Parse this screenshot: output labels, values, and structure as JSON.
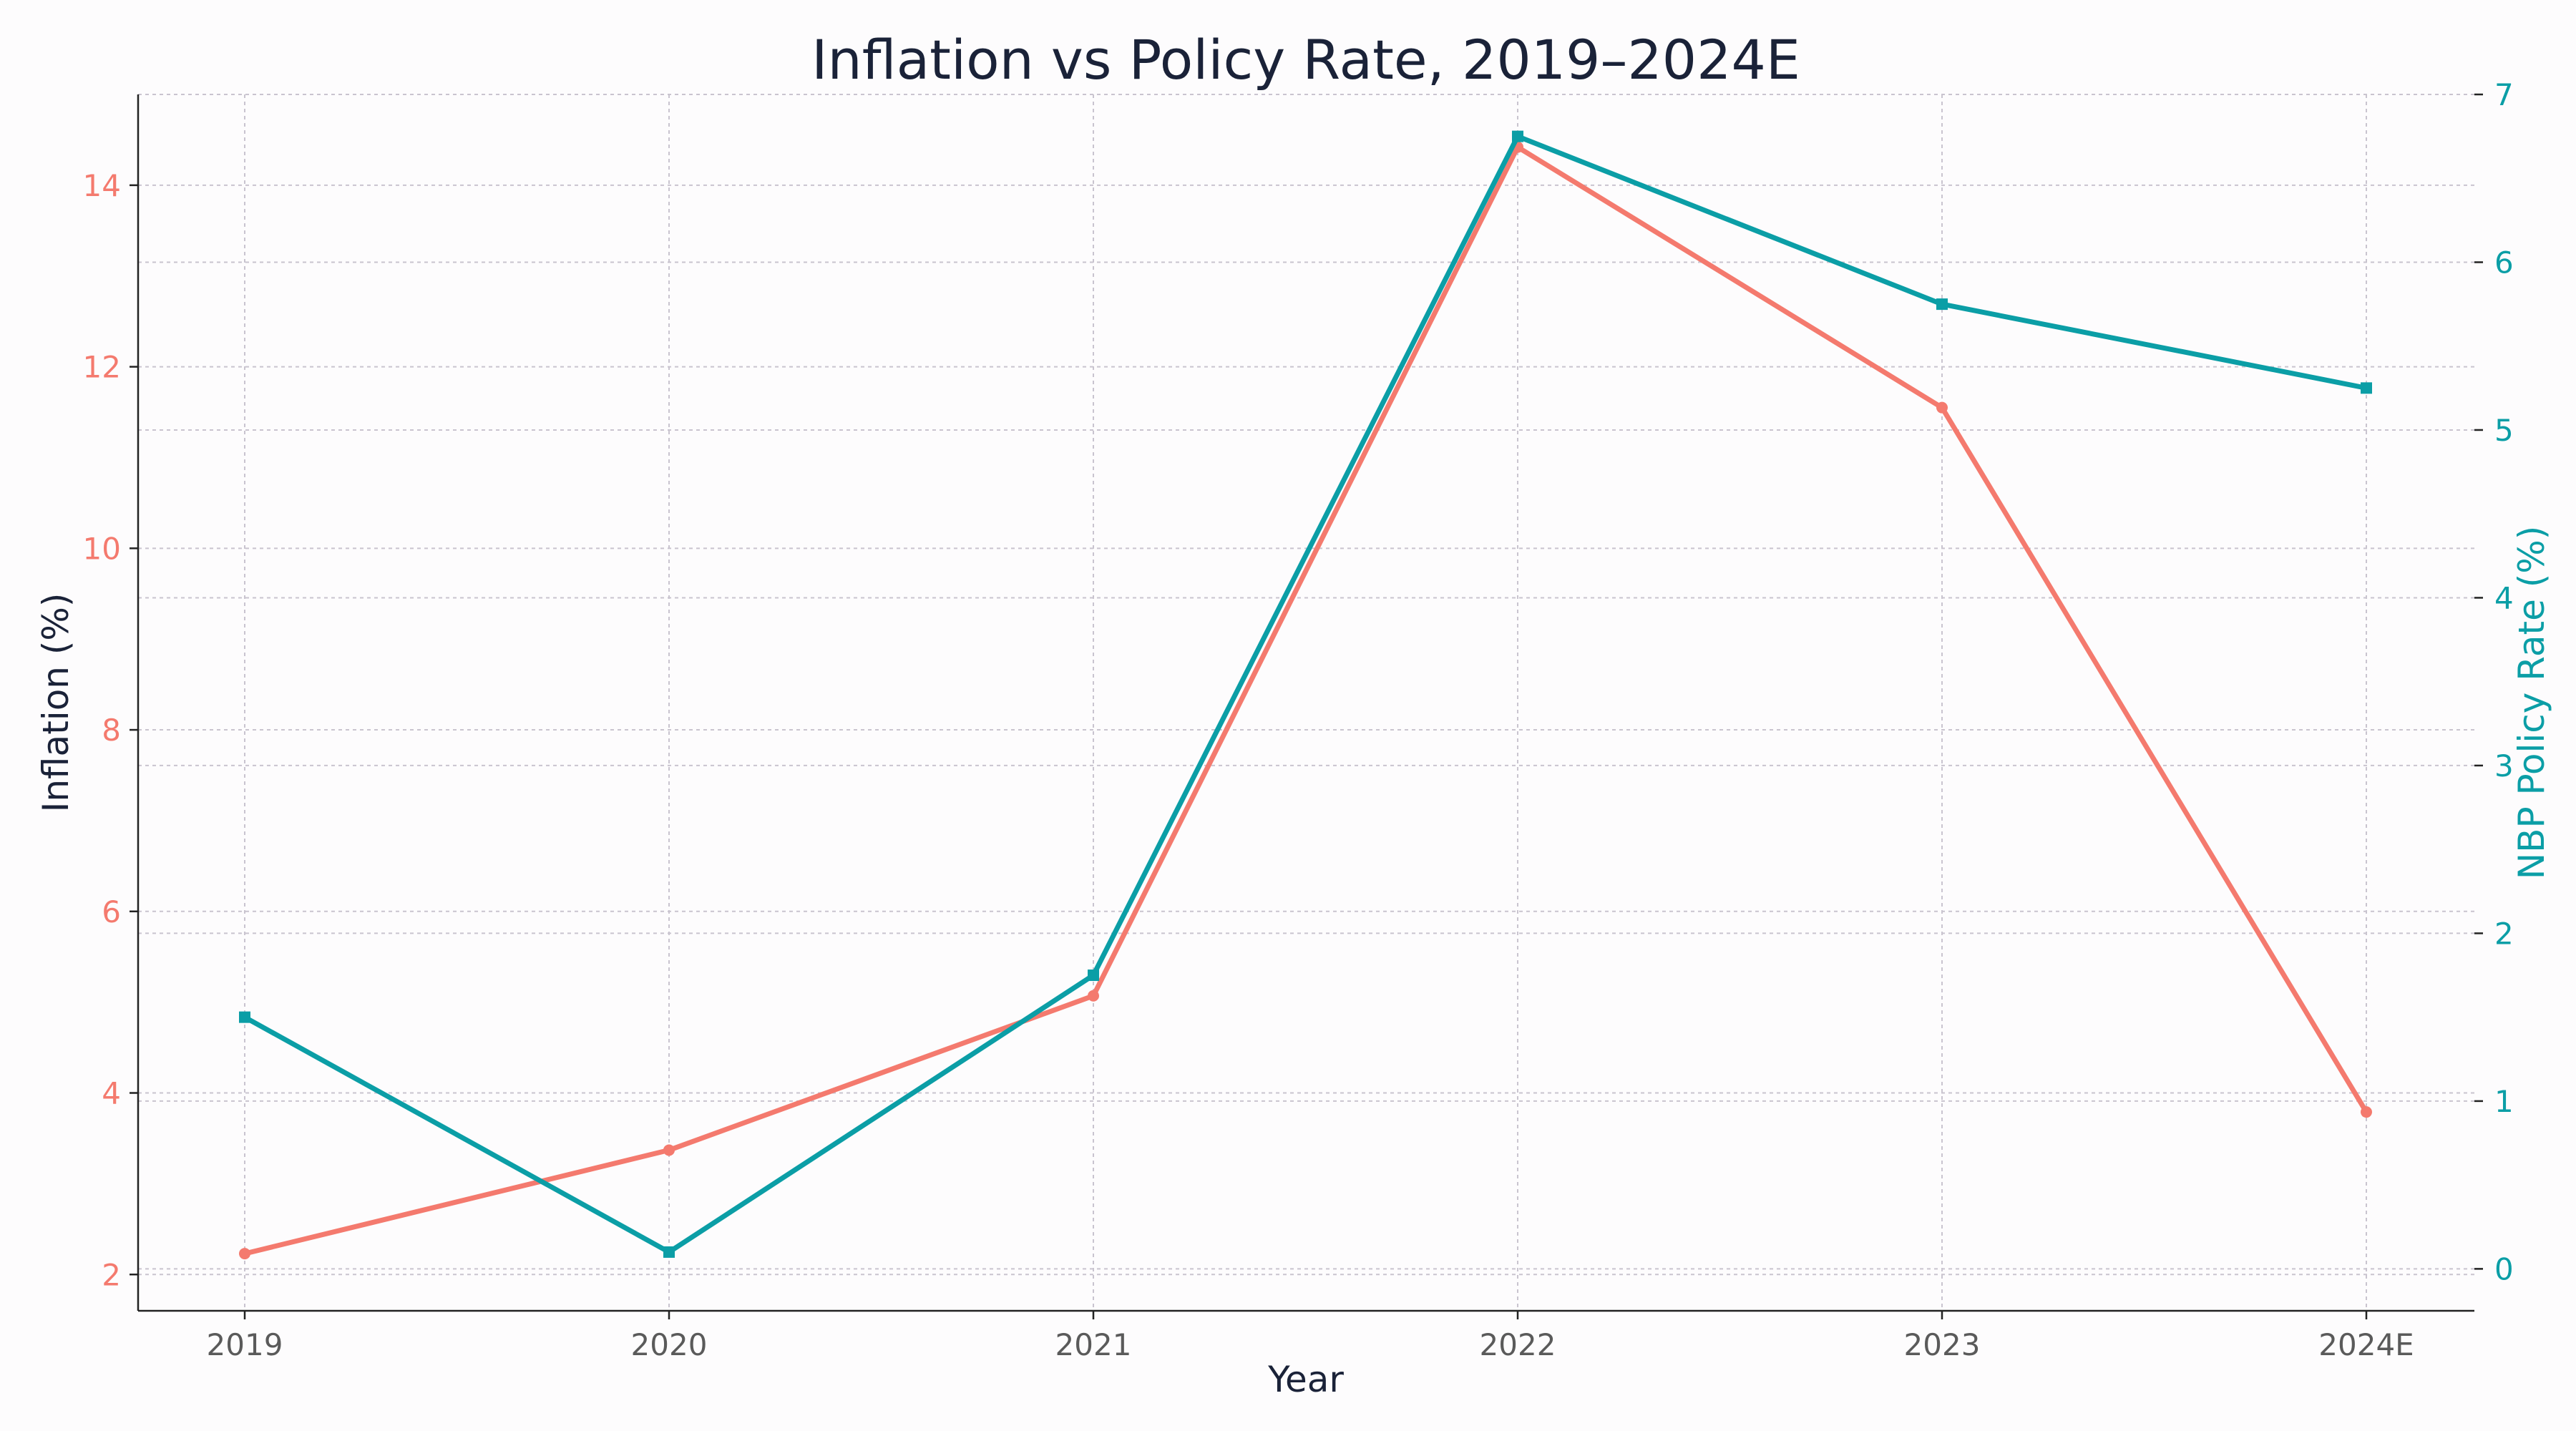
{
  "chart_data": {
    "type": "line",
    "title": "Inflation vs Policy Rate, 2019–2024E",
    "xlabel": "Year",
    "categories": [
      "2019",
      "2020",
      "2021",
      "2022",
      "2023",
      "2024E"
    ],
    "y_left": {
      "label": "Inflation (%)",
      "ticks": [
        2,
        4,
        6,
        8,
        10,
        12,
        14
      ],
      "range": [
        1.6,
        15.0
      ],
      "color": "#f47a6e"
    },
    "y_right": {
      "label": "NBP Policy Rate (%)",
      "ticks": [
        0,
        1,
        2,
        3,
        4,
        5,
        6,
        7
      ],
      "range": [
        -0.25,
        7.0
      ],
      "color": "#0b9ea6"
    },
    "series": [
      {
        "name": "Inflation",
        "axis": "left",
        "color": "#f47a6e",
        "marker": "circle",
        "values": [
          2.23,
          3.37,
          5.07,
          14.42,
          11.55,
          3.79
        ]
      },
      {
        "name": "NBP Policy Rate",
        "axis": "right",
        "color": "#0b9ea6",
        "marker": "square",
        "values": [
          1.5,
          0.1,
          1.75,
          6.75,
          5.75,
          5.25
        ]
      }
    ],
    "grid": true,
    "tick_color_x": "#5a5a5a",
    "text_color": "#1a2238"
  }
}
